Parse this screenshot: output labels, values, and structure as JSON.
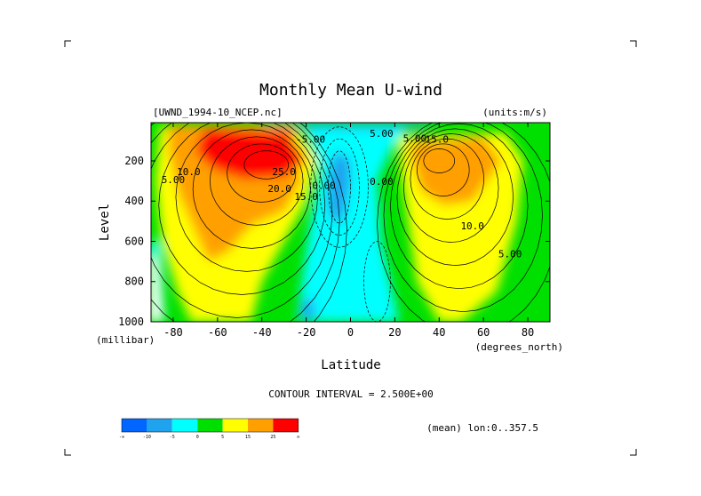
{
  "chart_data": {
    "type": "heatmap",
    "title": "Monthly Mean U-wind",
    "dataset_label": "[UWND_1994-10_NCEP.nc]",
    "units_label": "(units:m/s)",
    "xlabel": "Latitude",
    "x_unit_label": "(degrees_north)",
    "ylabel": "Level",
    "y_unit_label": "(millibar)",
    "x_ticks": [
      "-80",
      "-60",
      "-40",
      "-20",
      "0",
      "20",
      "40",
      "60",
      "80"
    ],
    "x_tick_values": [
      -80,
      -60,
      -40,
      -20,
      0,
      20,
      40,
      60,
      80
    ],
    "y_ticks": [
      "200",
      "400",
      "600",
      "800",
      "1000"
    ],
    "y_tick_values": [
      200,
      400,
      600,
      800,
      1000
    ],
    "xlim": [
      -90,
      90
    ],
    "ylim": [
      1000,
      10
    ],
    "contour_interval_label": "CONTOUR INTERVAL = 2.500E+00",
    "contour_interval": 2.5,
    "footer_label": "(mean) lon:0..357.5",
    "contour_labels": [
      {
        "text": "25.0",
        "x": -30,
        "y": 270
      },
      {
        "text": "20.0",
        "x": -32,
        "y": 355
      },
      {
        "text": "15.0",
        "x": -20,
        "y": 395
      },
      {
        "text": "10.0",
        "x": -73,
        "y": 270
      },
      {
        "text": "5.00",
        "x": -80,
        "y": 310
      },
      {
        "text": "0.00",
        "x": -12,
        "y": 340
      },
      {
        "text": "0.00",
        "x": 14,
        "y": 320
      },
      {
        "text": "5.00",
        "x": 14,
        "y": 80
      },
      {
        "text": "5.00",
        "x": 29,
        "y": 105
      },
      {
        "text": "-5.00",
        "x": -18,
        "y": 110
      },
      {
        "text": "15.0",
        "x": 39,
        "y": 110
      },
      {
        "text": "10.0",
        "x": 55,
        "y": 540
      },
      {
        "text": "5.00",
        "x": 72,
        "y": 680
      }
    ],
    "colorbar": {
      "colors": [
        "#0066ff",
        "#1fa3ef",
        "#00ffff",
        "#00e000",
        "#ffff00",
        "#ffa000",
        "#ff0000"
      ],
      "labels": [
        "-∞",
        "-10",
        "-5",
        "0",
        "5",
        "15",
        "25",
        "∞"
      ]
    }
  }
}
